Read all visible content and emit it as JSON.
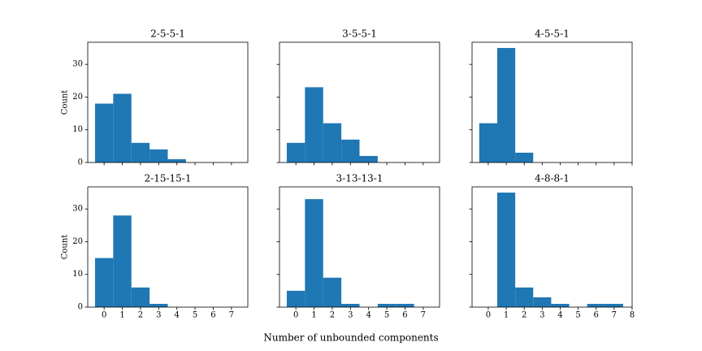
{
  "xlabel": "Number of unbounded components",
  "chart_data": [
    {
      "type": "histogram",
      "title": "2-5-5-1",
      "ylabel": "Count",
      "color": "#1f77b4",
      "bins": [
        -0.5,
        0.5,
        1.5,
        2.5,
        3.5,
        4.5
      ],
      "values": [
        18,
        21,
        6,
        4,
        1
      ],
      "xlim": [
        -0.9,
        7.9
      ],
      "ylim": [
        0,
        36.75
      ],
      "xticks": [
        0,
        1,
        2,
        3,
        4,
        5,
        6,
        7
      ],
      "yticks": [
        0,
        10,
        20,
        30
      ],
      "xtick_labels": false,
      "ytick_labels": true
    },
    {
      "type": "histogram",
      "title": "3-5-5-1",
      "color": "#1f77b4",
      "bins": [
        -0.5,
        0.5,
        1.5,
        2.5,
        3.5,
        4.5
      ],
      "values": [
        6,
        23,
        12,
        7,
        2
      ],
      "xlim": [
        -0.9,
        7.9
      ],
      "ylim": [
        0,
        36.75
      ],
      "xticks": [
        0,
        1,
        2,
        3,
        4,
        5,
        6,
        7
      ],
      "yticks": [
        0,
        10,
        20,
        30
      ],
      "xtick_labels": false,
      "ytick_labels": false
    },
    {
      "type": "histogram",
      "title": "4-5-5-1",
      "color": "#1f77b4",
      "bins": [
        -0.5,
        0.5,
        1.5,
        2.5
      ],
      "values": [
        12,
        35,
        3
      ],
      "xlim": [
        -0.9,
        8.0
      ],
      "ylim": [
        0,
        36.75
      ],
      "xticks": [
        0,
        1,
        2,
        3,
        4,
        5,
        6,
        7,
        8
      ],
      "yticks": [
        0,
        10,
        20,
        30
      ],
      "xtick_labels": false,
      "ytick_labels": false
    },
    {
      "type": "histogram",
      "title": "2-15-15-1",
      "ylabel": "Count",
      "color": "#1f77b4",
      "bins": [
        -0.5,
        0.5,
        1.5,
        2.5,
        3.5
      ],
      "values": [
        15,
        28,
        6,
        1
      ],
      "xlim": [
        -0.9,
        7.9
      ],
      "ylim": [
        0,
        36.75
      ],
      "xticks": [
        0,
        1,
        2,
        3,
        4,
        5,
        6,
        7
      ],
      "yticks": [
        0,
        10,
        20,
        30
      ],
      "xtick_labels": true,
      "ytick_labels": true
    },
    {
      "type": "histogram",
      "title": "3-13-13-1",
      "color": "#1f77b4",
      "bins": [
        -0.5,
        0.5,
        1.5,
        2.5,
        3.5,
        4.5,
        5.5,
        6.5
      ],
      "values": [
        5,
        33,
        9,
        1,
        0,
        1,
        1
      ],
      "xlim": [
        -0.9,
        7.9
      ],
      "ylim": [
        0,
        36.75
      ],
      "xticks": [
        0,
        1,
        2,
        3,
        4,
        5,
        6,
        7
      ],
      "yticks": [
        0,
        10,
        20,
        30
      ],
      "xtick_labels": true,
      "ytick_labels": false
    },
    {
      "type": "histogram",
      "title": "4-8-8-1",
      "color": "#1f77b4",
      "bins": [
        0.5,
        1.5,
        2.5,
        3.5,
        4.5,
        5.5,
        6.5,
        7.5
      ],
      "values": [
        35,
        6,
        3,
        1,
        0,
        1,
        1
      ],
      "xlim": [
        -0.9,
        8.0
      ],
      "ylim": [
        0,
        36.75
      ],
      "xticks": [
        0,
        1,
        2,
        3,
        4,
        5,
        6,
        7,
        8
      ],
      "yticks": [
        0,
        10,
        20,
        30
      ],
      "xtick_labels": true,
      "ytick_labels": false
    }
  ]
}
